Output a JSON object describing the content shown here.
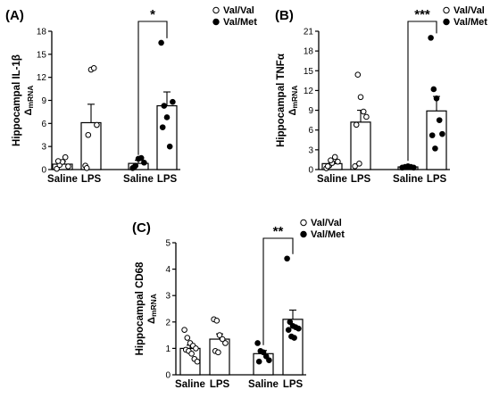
{
  "chart_data": [
    {
      "type": "bar",
      "panel_label": "(A)",
      "ylabel": "Hippocampal IL-1β",
      "ylabel_sub": "ΔmRNA",
      "ylim": [
        0,
        18
      ],
      "yticks": [
        0,
        3,
        6,
        9,
        12,
        15,
        18
      ],
      "categories": [
        "Saline",
        "LPS",
        "Saline",
        "LPS"
      ],
      "legend": [
        "Val/Val",
        "Val/Met"
      ],
      "legend_position": "top-right",
      "significance": "*",
      "series": [
        {
          "name": "Val/Val",
          "means": [
            0.7,
            6.1
          ],
          "sem": [
            0.35,
            2.4
          ],
          "points": [
            [
              0.1,
              0.6,
              1.0,
              1.6,
              0.4,
              1.1
            ],
            [
              0.5,
              4.5,
              13.0,
              13.2,
              5.8,
              0.2
            ]
          ]
        },
        {
          "name": "Val/Met",
          "means": [
            0.8,
            8.3
          ],
          "sem": [
            0.4,
            1.8
          ],
          "points": [
            [
              0.2,
              0.5,
              1.4,
              1.5,
              0.9,
              0.3
            ],
            [
              16.5,
              8.3,
              6.8,
              3.0,
              8.8,
              5.5
            ]
          ]
        }
      ]
    },
    {
      "type": "bar",
      "panel_label": "(B)",
      "ylabel": "Hippocampal TNFα",
      "ylabel_sub": "ΔmRNA",
      "ylim": [
        0,
        21
      ],
      "yticks": [
        0,
        3,
        6,
        9,
        12,
        15,
        18,
        21
      ],
      "categories": [
        "Saline",
        "LPS",
        "Saline",
        "LPS"
      ],
      "legend": [
        "Val/Val",
        "Val/Met"
      ],
      "legend_position": "top-right",
      "significance": "***",
      "series": [
        {
          "name": "Val/Val",
          "means": [
            0.9,
            7.2
          ],
          "sem": [
            0.3,
            1.8
          ],
          "points": [
            [
              0.2,
              0.6,
              1.0,
              1.9,
              1.2,
              0.5,
              1.4
            ],
            [
              0.5,
              14.4,
              11.0,
              8.8,
              8.0,
              6.8,
              0.9
            ]
          ]
        },
        {
          "name": "Val/Met",
          "means": [
            0.4,
            8.9
          ],
          "sem": [
            0.1,
            2.2
          ],
          "points": [
            [
              0.3,
              0.4,
              0.5,
              0.4,
              0.3
            ],
            [
              20.0,
              12.2,
              10.8,
              7.5,
              5.4,
              5.2,
              3.2
            ]
          ]
        }
      ]
    },
    {
      "type": "bar",
      "panel_label": "(C)",
      "ylabel": "Hippocampal CD68",
      "ylabel_sub": "ΔmRNA",
      "ylim": [
        0,
        5
      ],
      "yticks": [
        0,
        1,
        2,
        3,
        4,
        5
      ],
      "categories": [
        "Saline",
        "LPS",
        "Saline",
        "LPS"
      ],
      "legend": [
        "Val/Val",
        "Val/Met"
      ],
      "legend_position": "top-right",
      "significance": "**",
      "series": [
        {
          "name": "Val/Val",
          "means": [
            1.0,
            1.35
          ],
          "sem": [
            0.12,
            0.2
          ],
          "points": [
            [
              1.7,
              1.4,
              1.2,
              1.1,
              1.0,
              0.95,
              0.9,
              0.8,
              0.6,
              0.5
            ],
            [
              2.1,
              2.05,
              1.5,
              1.35,
              1.2,
              0.9,
              0.85
            ]
          ]
        },
        {
          "name": "Val/Met",
          "means": [
            0.8,
            2.1
          ],
          "sem": [
            0.12,
            0.35
          ],
          "points": [
            [
              1.2,
              0.9,
              0.85,
              0.7,
              0.55,
              0.5
            ],
            [
              4.4,
              2.0,
              1.85,
              1.8,
              1.75,
              1.7,
              1.45,
              1.4
            ]
          ]
        }
      ]
    }
  ]
}
